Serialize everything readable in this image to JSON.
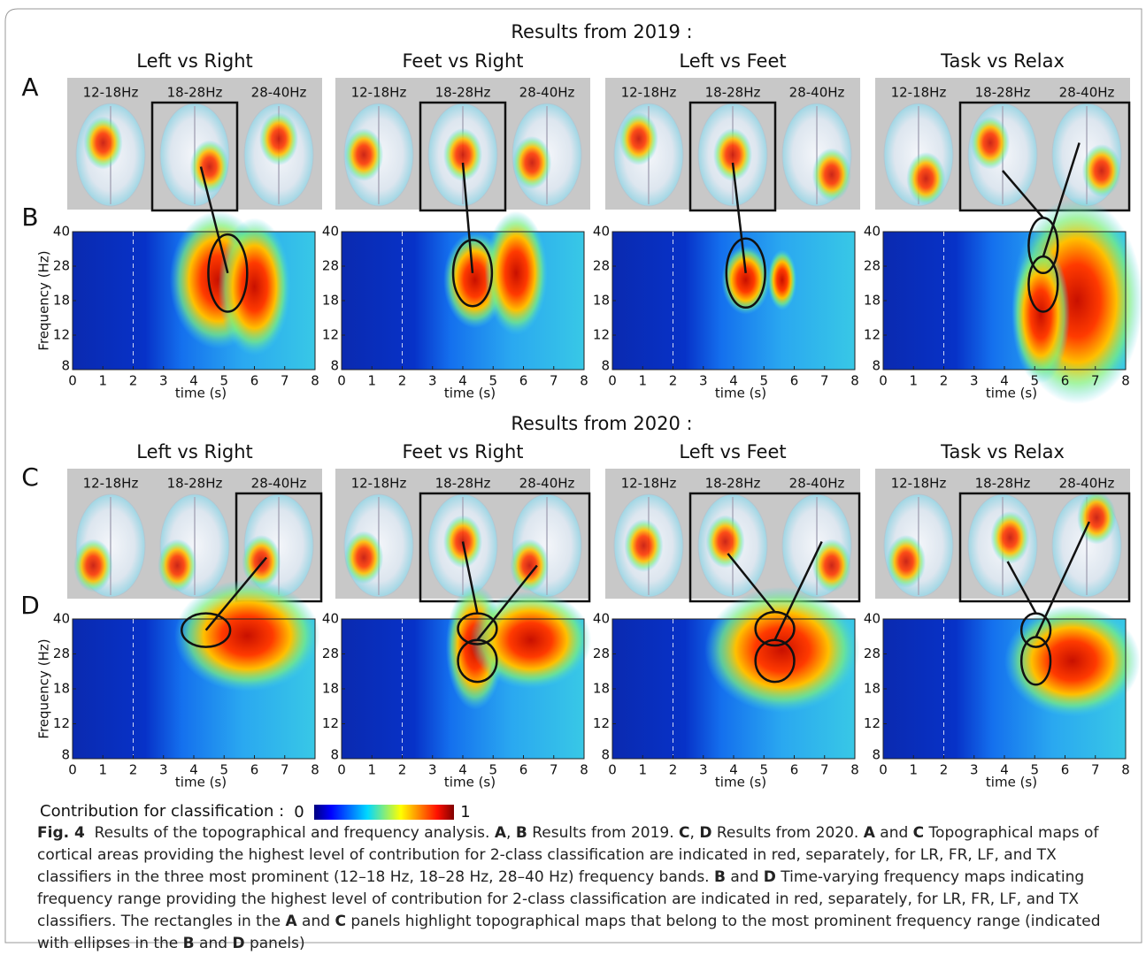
{
  "figure": {
    "sections": [
      {
        "title": "Results from 2019 :",
        "panel_labels": [
          "A",
          "B"
        ],
        "panels": [
          "Left vs Right",
          "Feet vs Right",
          "Left vs Feet",
          "Task vs Relax"
        ]
      },
      {
        "title": "Results from 2020 :",
        "panel_labels": [
          "C",
          "D"
        ],
        "panels": [
          "Left vs Right",
          "Feet vs Right",
          "Left vs Feet",
          "Task vs Relax"
        ]
      }
    ],
    "bands": [
      "12-18Hz",
      "18-28Hz",
      "28-40Hz"
    ],
    "axes": {
      "ylabel": "Frequency (Hz)",
      "xlabel": "time (s)",
      "xticks": [
        0,
        1,
        2,
        3,
        4,
        5,
        6,
        7,
        8
      ],
      "yticks": [
        40,
        28,
        18,
        12,
        8
      ]
    },
    "colorbar": {
      "label": "Contribution for classification :",
      "min": 0,
      "max": 1
    }
  },
  "caption": {
    "segments": [
      "Fig. 4",
      "  Results of the topographical and frequency analysis. ",
      "A",
      ", ",
      "B",
      " Results from 2019. ",
      "C",
      ", ",
      "D",
      " Results from 2020. ",
      "A",
      " and ",
      "C",
      " Topographical maps of cortical areas providing the highest level of contribution for 2-class classification are indicated in red, separately, for LR, FR, LF, and TX classifiers in the three most prominent (12–18 Hz, 18–28 Hz, 28–40 Hz) frequency bands. ",
      "B",
      " and ",
      "D",
      " Time-varying frequency maps indicating frequency range providing the highest level of contribution for 2-class classification are indicated in red, separately, for LR, FR, LF, and TX classifiers. The rectangles in the ",
      "A",
      " and ",
      "C",
      " panels highlight topographical maps that belong to the most prominent frequency range (indicated with ellipses in the ",
      "B",
      " and ",
      "D",
      " panels)"
    ]
  }
}
